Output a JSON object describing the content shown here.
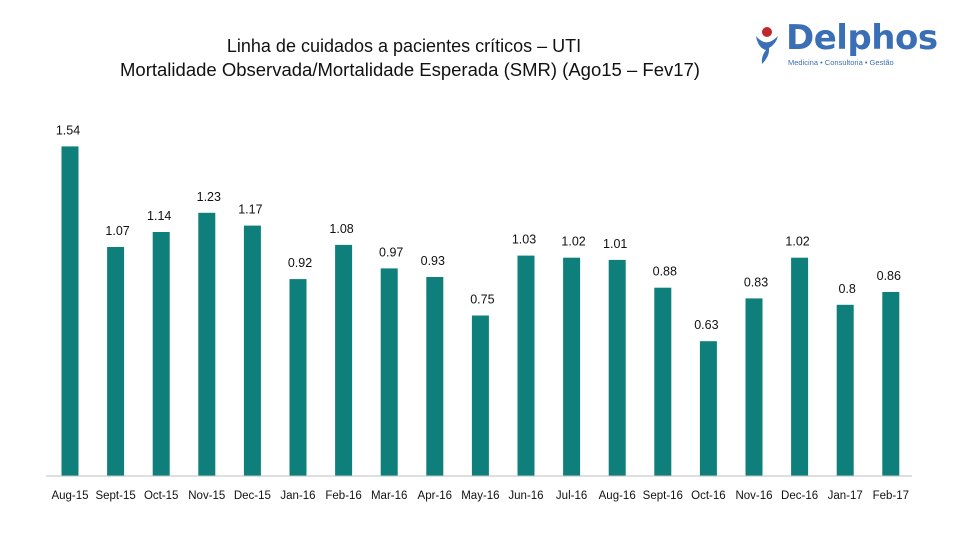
{
  "header": {
    "title_line1": "Linha de cuidados a pacientes críticos – UTI",
    "title_line2": "Mortalidade Observada/Mortalidade Esperada (SMR) (Ago15 – Fev17)"
  },
  "logo": {
    "name": "Delphos",
    "tagline": "Medicina • Consultoria • Gestão"
  },
  "colors": {
    "bar": "#0e7f7a",
    "logo_blue": "#3b6fb5",
    "logo_red": "#c0282d"
  },
  "chart_data": {
    "type": "bar",
    "title": "Mortalidade Observada/Mortalidade Esperada (SMR) (Ago15 – Fev17)",
    "xlabel": "",
    "ylabel": "",
    "grid": false,
    "ylim": [
      0,
      1.6
    ],
    "categories": [
      "Aug-15",
      "Sept-15",
      "Oct-15",
      "Nov-15",
      "Dec-15",
      "Jan-16",
      "Feb-16",
      "Mar-16",
      "Apr-16",
      "May-16",
      "Jun-16",
      "Jul-16",
      "Aug-16",
      "Sept-16",
      "Oct-16",
      "Nov-16",
      "Dec-16",
      "Jan-17",
      "Feb-17"
    ],
    "values": [
      1.54,
      1.07,
      1.14,
      1.23,
      1.17,
      0.92,
      1.08,
      0.97,
      0.93,
      0.75,
      1.03,
      1.02,
      1.01,
      0.88,
      0.63,
      0.83,
      1.02,
      0.8,
      0.86
    ],
    "value_labels": [
      "1.54",
      "1.07",
      "1.14",
      "1.23",
      "1.17",
      "0.92",
      "1.08",
      "0.97",
      "0.93",
      "0.75",
      "1.03",
      "1.02",
      "1.01",
      "0.88",
      "0.63",
      "0.83",
      "1.02",
      "0.8",
      "0.86"
    ]
  }
}
